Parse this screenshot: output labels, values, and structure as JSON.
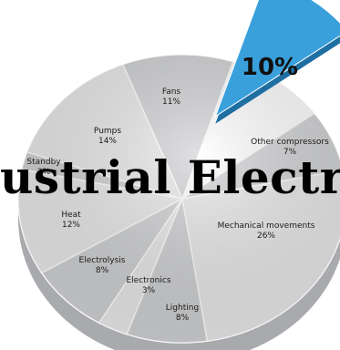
{
  "chart_data": {
    "type": "pie",
    "title": "",
    "slices": [
      {
        "label": "Other compressors",
        "value": 7,
        "value_label": "7%"
      },
      {
        "label": "Mechanical movements",
        "value": 26,
        "value_label": "26%"
      },
      {
        "label": "Lighting",
        "value": 8,
        "value_label": "8%"
      },
      {
        "label": "Electronics",
        "value": 3,
        "value_label": "3%"
      },
      {
        "label": "Electrolysis",
        "value": 8,
        "value_label": "8%"
      },
      {
        "label": "Heat",
        "value": 12,
        "value_label": "12%"
      },
      {
        "label": "Standby",
        "value": 2,
        "value_label": "2%"
      },
      {
        "label": "Pumps",
        "value": 14,
        "value_label": "14%"
      },
      {
        "label": "Fans",
        "value": 11,
        "value_label": "11%"
      }
    ],
    "highlighted_slice": {
      "label": "",
      "value": 10,
      "value_label": "10%",
      "color": "#3aa0dc"
    },
    "colors": {
      "slice_light": "#e9e9ea",
      "slice_dark": "#cfd0d2",
      "edge": "#ffffff",
      "highlight": "#3aa0dc",
      "highlight_side": "#1f6fa3"
    },
    "style": "3d-exploded"
  },
  "overlay": {
    "text": "ustrial Electr"
  }
}
